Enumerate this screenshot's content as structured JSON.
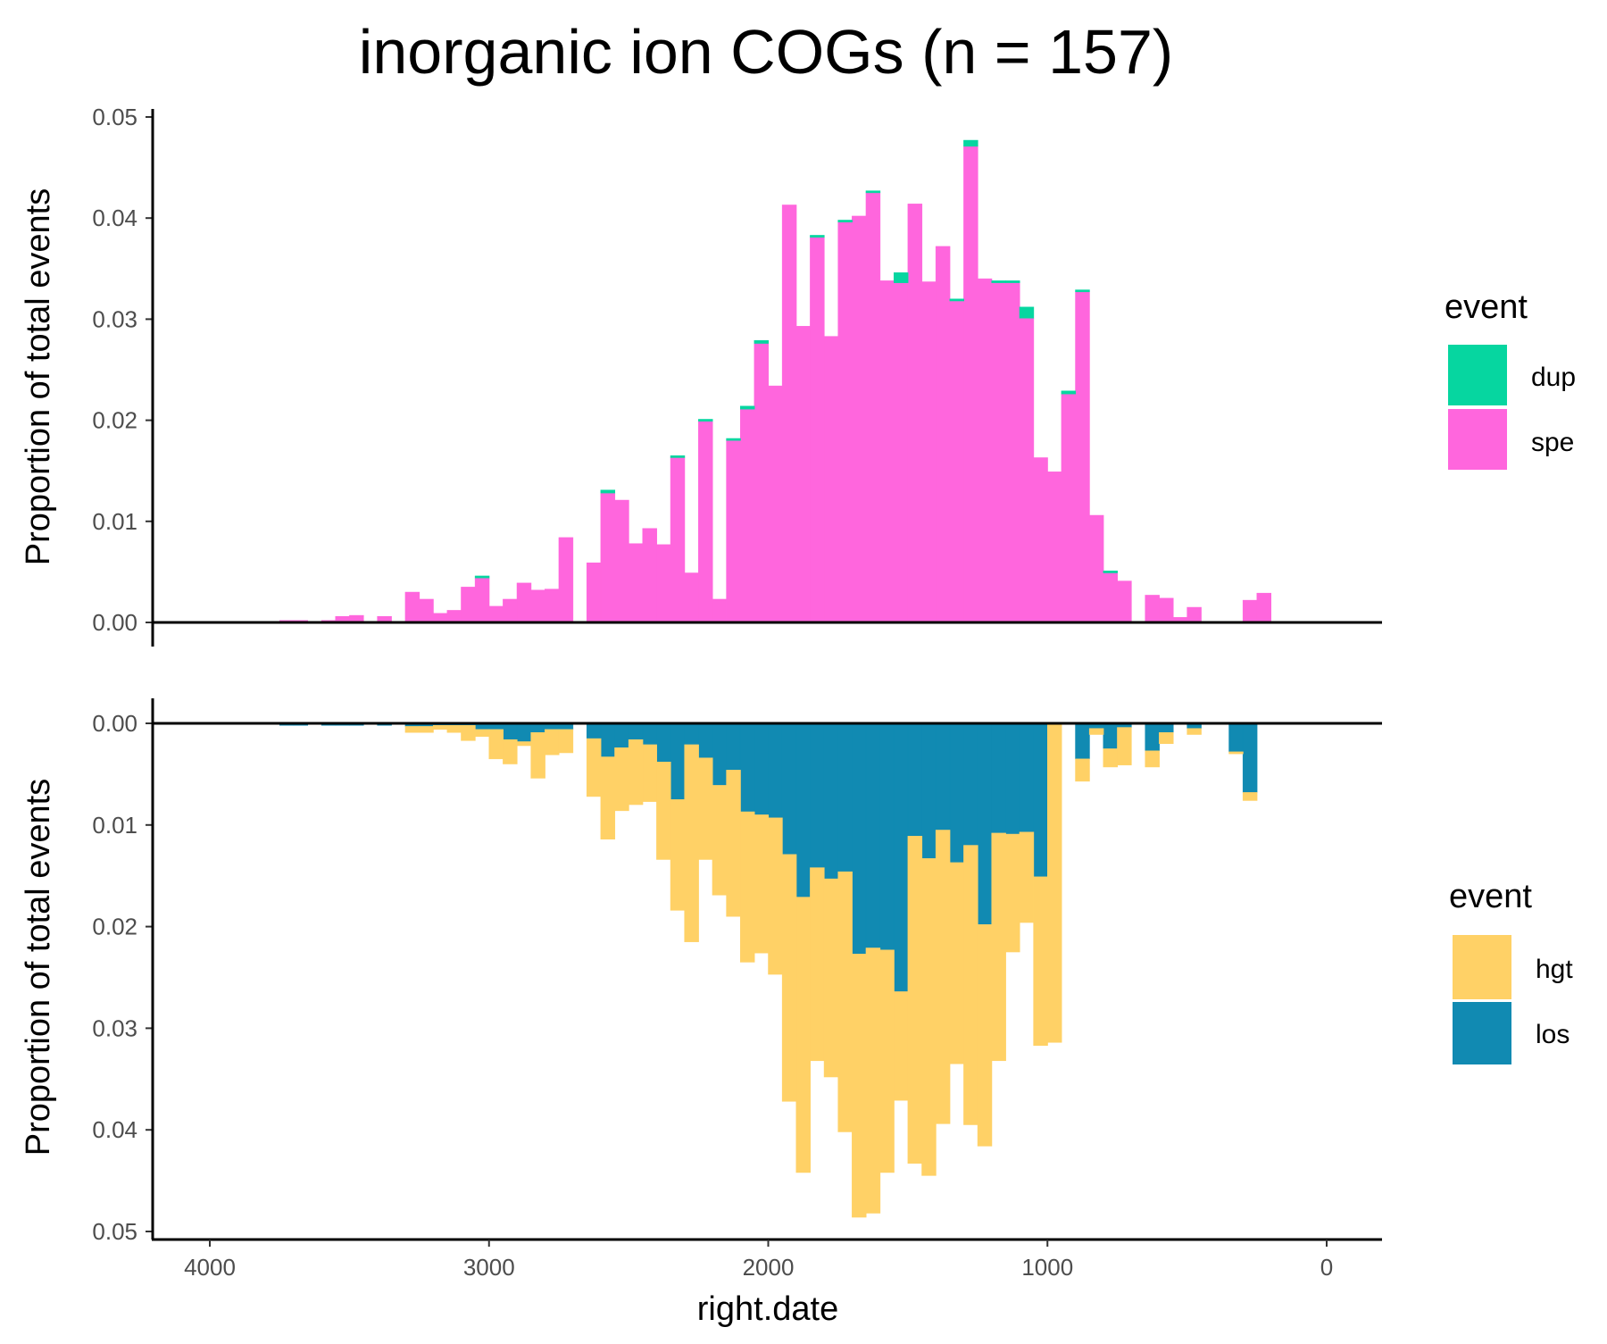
{
  "chart_data": {
    "type": "bar",
    "title": "inorganic ion COGs (n = 157)",
    "xlabel": "right.date",
    "xlim": [
      4200,
      -200
    ],
    "x_ticks": [
      4000,
      3000,
      2000,
      1000,
      0
    ],
    "x_tick_labels": [
      "4000",
      "3000",
      "2000",
      "1000",
      "0"
    ],
    "bin_width": 50,
    "x": [
      3725,
      3675,
      3625,
      3575,
      3525,
      3475,
      3425,
      3375,
      3325,
      3275,
      3225,
      3175,
      3125,
      3075,
      3025,
      2975,
      2925,
      2875,
      2825,
      2775,
      2725,
      2675,
      2625,
      2575,
      2525,
      2475,
      2425,
      2375,
      2325,
      2275,
      2225,
      2175,
      2125,
      2075,
      2025,
      1975,
      1925,
      1875,
      1825,
      1775,
      1725,
      1675,
      1625,
      1575,
      1525,
      1475,
      1425,
      1375,
      1325,
      1275,
      1225,
      1175,
      1125,
      1075,
      1025,
      975,
      925,
      875,
      825,
      775,
      725,
      675,
      625,
      575,
      525,
      475,
      425,
      375,
      325,
      275,
      225,
      175
    ],
    "panels": [
      {
        "name": "top",
        "ylabel": "Proportion of total events",
        "ylim": [
          0,
          0.05
        ],
        "y_ticks": [
          0,
          0.01,
          0.02,
          0.03,
          0.04,
          0.05
        ],
        "y_tick_labels": [
          "0.00",
          "0.01",
          "0.02",
          "0.03",
          "0.04",
          "0.05"
        ],
        "direction": "up",
        "legend_title": "event",
        "legend_labels": [
          "dup",
          "spe"
        ],
        "series": [
          {
            "name": "spe",
            "color": "#ff66dd",
            "values": [
              0.0002,
              0.0002,
              0.0001,
              0.0002,
              0.0006,
              0.0007,
              0,
              0.0006,
              0,
              0.003,
              0.0023,
              0.0009,
              0.0012,
              0.0035,
              0.0044,
              0.0016,
              0.0023,
              0.0039,
              0.0032,
              0.0033,
              0.0084,
              0,
              0.0059,
              0.0128,
              0.0121,
              0.0078,
              0.0093,
              0.0077,
              0.0163,
              0.0049,
              0.0199,
              0.0023,
              0.018,
              0.0211,
              0.0276,
              0.0234,
              0.0413,
              0.0293,
              0.0381,
              0.0283,
              0.0396,
              0.0402,
              0.0425,
              0.0338,
              0.0336,
              0.0414,
              0.0337,
              0.0372,
              0.0318,
              0.0471,
              0.034,
              0.0336,
              0.0336,
              0.0301,
              0.0163,
              0.0149,
              0.0226,
              0.0327,
              0.0106,
              0.0049,
              0.0041,
              0,
              0.0027,
              0.0024,
              0.0005,
              0.0015,
              0,
              0,
              0,
              0.0022,
              0.0029,
              0
            ],
            "stack": 0
          },
          {
            "name": "dup",
            "color": "#06d6a0",
            "values": [
              0,
              0,
              0,
              0,
              0,
              0,
              0,
              0,
              0,
              0,
              0,
              0,
              0,
              0,
              0.0002,
              0,
              0,
              0,
              0,
              0,
              0,
              0,
              0,
              0.0003,
              0,
              0,
              0,
              0,
              0.0002,
              0,
              0.0002,
              0,
              0.0002,
              0.0003,
              0.0003,
              0,
              0,
              0,
              0.0002,
              0,
              0.0002,
              0,
              0.0002,
              0,
              0.001,
              0,
              0,
              0,
              0.0002,
              0.0006,
              0,
              0.0002,
              0.0002,
              0.0011,
              0,
              0,
              0.0003,
              0.0002,
              0,
              0.0002,
              0,
              0,
              0,
              0,
              0,
              0,
              0,
              0,
              0,
              0,
              0,
              0
            ],
            "stack": 1
          }
        ]
      },
      {
        "name": "bottom",
        "ylabel": "Proportion of total events",
        "ylim": [
          0,
          0.05
        ],
        "y_ticks": [
          0,
          0.01,
          0.02,
          0.03,
          0.04,
          0.05
        ],
        "y_tick_labels": [
          "0.00",
          "0.01",
          "0.02",
          "0.03",
          "0.04",
          "0.05"
        ],
        "direction": "down",
        "legend_title": "event",
        "legend_labels": [
          "hgt",
          "los"
        ],
        "series": [
          {
            "name": "los",
            "color": "#118ab2",
            "values": [
              0.0002,
              0.0002,
              0.0001,
              0.0002,
              0.0002,
              0.0002,
              0,
              0.0002,
              0,
              0.0003,
              0.0003,
              0.0002,
              0.0002,
              0.0002,
              0.0006,
              0.0006,
              0.0016,
              0.0018,
              0.0009,
              0.0006,
              0.0006,
              0,
              0.0015,
              0.0033,
              0.0024,
              0.0016,
              0.0021,
              0.0038,
              0.0075,
              0.0021,
              0.0034,
              0.0061,
              0.0046,
              0.0087,
              0.009,
              0.0093,
              0.0129,
              0.0171,
              0.0142,
              0.0153,
              0.0146,
              0.0227,
              0.0221,
              0.0223,
              0.0264,
              0.0111,
              0.0133,
              0.0105,
              0.0137,
              0.012,
              0.0198,
              0.0108,
              0.0109,
              0.0107,
              0.0151,
              0,
              0,
              0.0035,
              0.0005,
              0.0025,
              0.0004,
              0,
              0.0027,
              0.0009,
              0,
              0.0005,
              0,
              0,
              0.0028,
              0.0068,
              0,
              0
            ],
            "stack": 0
          },
          {
            "name": "hgt",
            "color": "#ffd166",
            "values": [
              0,
              0,
              0,
              0,
              0,
              0,
              0,
              0,
              0,
              0.0006,
              0.0006,
              0.0004,
              0.0007,
              0.0015,
              0.0007,
              0.0029,
              0.0024,
              0.0004,
              0.0045,
              0.0025,
              0.0023,
              0,
              0.0057,
              0.0081,
              0.0062,
              0.0064,
              0.0056,
              0.0096,
              0.0109,
              0.0194,
              0.01,
              0.0108,
              0.0144,
              0.0148,
              0.0136,
              0.0154,
              0.0243,
              0.0271,
              0.019,
              0.0195,
              0.0256,
              0.0259,
              0.0261,
              0.0219,
              0.0107,
              0.0322,
              0.0312,
              0.0289,
              0.0198,
              0.0275,
              0.0218,
              0.0224,
              0.0116,
              0.0089,
              0.0166,
              0.0314,
              0,
              0.0022,
              0.0006,
              0.0018,
              0.0037,
              0,
              0.0016,
              0.0011,
              0,
              0.0006,
              0,
              0,
              0.0002,
              0.0008,
              0,
              0
            ],
            "stack": 1
          }
        ]
      }
    ]
  }
}
